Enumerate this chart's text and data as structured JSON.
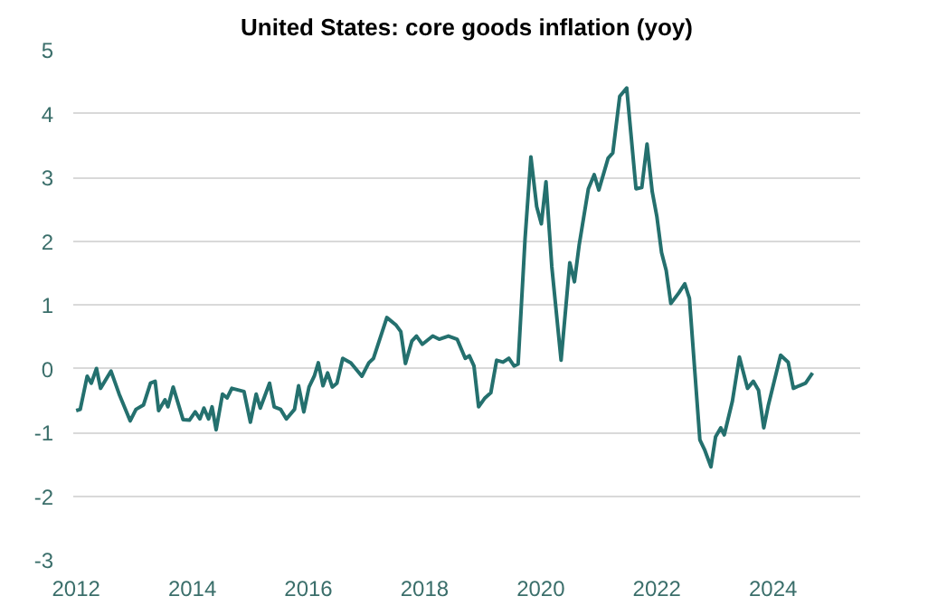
{
  "chart_data": {
    "type": "line",
    "title": "United States: core goods inflation (yoy)",
    "x": [
      2012.0,
      2012.07,
      2012.19,
      2012.26,
      2012.35,
      2012.42,
      2012.6,
      2012.74,
      2012.93,
      2013.03,
      2013.16,
      2013.28,
      2013.36,
      2013.42,
      2013.53,
      2013.58,
      2013.67,
      2013.84,
      2013.95,
      2014.05,
      2014.13,
      2014.2,
      2014.28,
      2014.34,
      2014.41,
      2014.52,
      2014.6,
      2014.68,
      2014.89,
      2015.0,
      2015.1,
      2015.17,
      2015.33,
      2015.41,
      2015.52,
      2015.62,
      2015.76,
      2015.83,
      2015.92,
      2016.01,
      2016.1,
      2016.17,
      2016.25,
      2016.33,
      2016.41,
      2016.49,
      2016.59,
      2016.73,
      2016.92,
      2017.04,
      2017.12,
      2017.35,
      2017.51,
      2017.59,
      2017.67,
      2017.78,
      2017.86,
      2017.96,
      2018.14,
      2018.25,
      2018.41,
      2018.56,
      2018.7,
      2018.77,
      2018.85,
      2018.93,
      2019.04,
      2019.14,
      2019.24,
      2019.35,
      2019.45,
      2019.54,
      2019.61,
      2019.73,
      2019.83,
      2019.93,
      2020.01,
      2020.09,
      2020.19,
      2020.35,
      2020.5,
      2020.58,
      2020.66,
      2020.82,
      2020.92,
      2021.0,
      2021.16,
      2021.24,
      2021.36,
      2021.48,
      2021.55,
      2021.64,
      2021.74,
      2021.83,
      2021.92,
      2022.0,
      2022.08,
      2022.16,
      2022.24,
      2022.38,
      2022.48,
      2022.56,
      2022.74,
      2022.82,
      2022.93,
      2023.01,
      2023.1,
      2023.16,
      2023.3,
      2023.42,
      2023.56,
      2023.66,
      2023.75,
      2023.84,
      2023.92,
      2024.13,
      2024.26,
      2024.35,
      2024.45,
      2024.56,
      2024.68
    ],
    "series": [
      {
        "color": "#24706e",
        "values": [
          -0.66,
          -0.64,
          -0.12,
          -0.23,
          0,
          -0.31,
          -0.04,
          -0.4,
          -0.82,
          -0.64,
          -0.57,
          -0.23,
          -0.2,
          -0.66,
          -0.49,
          -0.6,
          -0.29,
          -0.8,
          -0.81,
          -0.68,
          -0.79,
          -0.62,
          -0.79,
          -0.6,
          -0.96,
          -0.4,
          -0.46,
          -0.31,
          -0.36,
          -0.84,
          -0.4,
          -0.62,
          -0.23,
          -0.6,
          -0.64,
          -0.79,
          -0.64,
          -0.27,
          -0.68,
          -0.29,
          -0.12,
          0.09,
          -0.27,
          -0.07,
          -0.29,
          -0.23,
          0.16,
          0.09,
          -0.12,
          0.09,
          0.16,
          0.8,
          0.68,
          0.58,
          0.08,
          0.43,
          0.51,
          0.38,
          0.51,
          0.46,
          0.51,
          0.46,
          0.16,
          0.2,
          0.04,
          -0.6,
          -0.46,
          -0.38,
          0.13,
          0.1,
          0.16,
          0.04,
          0.07,
          2.04,
          3.32,
          2.54,
          2.27,
          2.93,
          1.6,
          0.13,
          1.66,
          1.36,
          1.93,
          2.82,
          3.04,
          2.8,
          3.3,
          3.38,
          4.27,
          4.4,
          3.71,
          2.82,
          2.84,
          3.52,
          2.77,
          2.38,
          1.82,
          1.54,
          1.02,
          1.19,
          1.33,
          1.1,
          -1.12,
          -1.27,
          -1.54,
          -1.07,
          -0.93,
          -1.04,
          -0.51,
          0.18,
          -0.31,
          -0.2,
          -0.34,
          -0.93,
          -0.57,
          0.21,
          0.1,
          -0.31,
          -0.27,
          -0.23,
          -0.07
        ]
      }
    ],
    "xlim": [
      2011.95,
      2025.5
    ],
    "xticks": [
      2012,
      2014,
      2016,
      2018,
      2020,
      2022,
      2024
    ],
    "ylim": [
      -3,
      5
    ],
    "yticks": [
      {
        "value": -3,
        "label": "-3"
      },
      {
        "value": -2,
        "label": "-2"
      },
      {
        "value": -1,
        "label": "-1"
      },
      0,
      1,
      2,
      3,
      4,
      5
    ],
    "grid": "y",
    "marker": "none",
    "line_style": "solid"
  }
}
